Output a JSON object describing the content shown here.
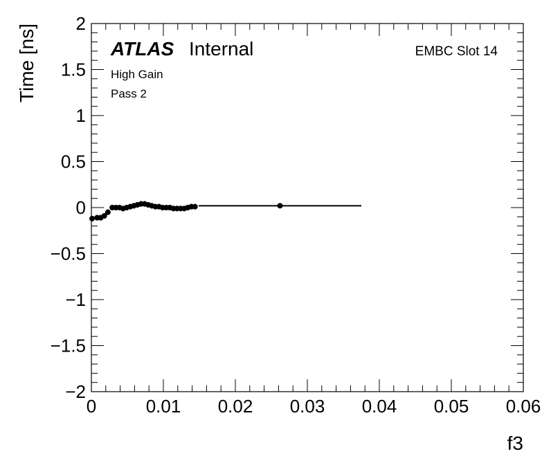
{
  "chart_data": {
    "type": "scatter",
    "xlabel": "f3",
    "ylabel": "Time [ns]",
    "xlim": [
      0,
      0.06
    ],
    "ylim": [
      -2,
      2
    ],
    "x_major_ticks": [
      0,
      0.01,
      0.02,
      0.03,
      0.04,
      0.05,
      0.06
    ],
    "x_tick_labels": [
      "0",
      "0.01",
      "0.02",
      "0.03",
      "0.04",
      "0.05",
      "0.06"
    ],
    "y_major_ticks": [
      -2,
      -1.5,
      -1,
      -0.5,
      0,
      0.5,
      1,
      1.5,
      2
    ],
    "y_tick_labels": [
      "−2",
      "−1.5",
      "−1",
      "−0.5",
      "0",
      "0.5",
      "1",
      "1.5",
      "2"
    ],
    "annotations": {
      "atlas": "ATLAS",
      "atlas_status": "Internal",
      "gain": "High Gain",
      "pass": "Pass 2",
      "slot": "EMBC Slot 14"
    },
    "series": [
      {
        "marker": "circle",
        "color": "#000000",
        "points": [
          {
            "x": 0.0001,
            "y": -0.12,
            "xerr": 0.0002,
            "yerr": 0.03
          },
          {
            "x": 0.0008,
            "y": -0.11,
            "xerr": 0.0003,
            "yerr": 0.03
          },
          {
            "x": 0.0013,
            "y": -0.11,
            "xerr": 0.0003,
            "yerr": 0.03
          },
          {
            "x": 0.0018,
            "y": -0.09,
            "xerr": 0.0003,
            "yerr": 0.03
          },
          {
            "x": 0.0023,
            "y": -0.05,
            "xerr": 0.0003,
            "yerr": 0.03
          },
          {
            "x": 0.0029,
            "y": 0.0,
            "xerr": 0.0003,
            "yerr": 0.03
          },
          {
            "x": 0.0034,
            "y": 0.0,
            "xerr": 0.0003,
            "yerr": 0.03
          },
          {
            "x": 0.0039,
            "y": 0.0,
            "xerr": 0.0003,
            "yerr": 0.03
          },
          {
            "x": 0.0044,
            "y": -0.01,
            "xerr": 0.0003,
            "yerr": 0.03
          },
          {
            "x": 0.0049,
            "y": 0.0,
            "xerr": 0.0003,
            "yerr": 0.03
          },
          {
            "x": 0.0054,
            "y": 0.01,
            "xerr": 0.0003,
            "yerr": 0.03
          },
          {
            "x": 0.0059,
            "y": 0.02,
            "xerr": 0.0003,
            "yerr": 0.03
          },
          {
            "x": 0.0064,
            "y": 0.03,
            "xerr": 0.0003,
            "yerr": 0.03
          },
          {
            "x": 0.0069,
            "y": 0.04,
            "xerr": 0.0003,
            "yerr": 0.03
          },
          {
            "x": 0.0074,
            "y": 0.04,
            "xerr": 0.0003,
            "yerr": 0.03
          },
          {
            "x": 0.0079,
            "y": 0.03,
            "xerr": 0.0003,
            "yerr": 0.03
          },
          {
            "x": 0.0084,
            "y": 0.02,
            "xerr": 0.0003,
            "yerr": 0.03
          },
          {
            "x": 0.0089,
            "y": 0.01,
            "xerr": 0.0003,
            "yerr": 0.03
          },
          {
            "x": 0.0094,
            "y": 0.01,
            "xerr": 0.0003,
            "yerr": 0.03
          },
          {
            "x": 0.0099,
            "y": 0.0,
            "xerr": 0.0003,
            "yerr": 0.03
          },
          {
            "x": 0.0104,
            "y": 0.0,
            "xerr": 0.0003,
            "yerr": 0.03
          },
          {
            "x": 0.0109,
            "y": 0.0,
            "xerr": 0.0003,
            "yerr": 0.03
          },
          {
            "x": 0.0114,
            "y": -0.01,
            "xerr": 0.0003,
            "yerr": 0.03
          },
          {
            "x": 0.0119,
            "y": -0.01,
            "xerr": 0.0003,
            "yerr": 0.03
          },
          {
            "x": 0.0124,
            "y": -0.01,
            "xerr": 0.0003,
            "yerr": 0.03
          },
          {
            "x": 0.0129,
            "y": -0.01,
            "xerr": 0.0003,
            "yerr": 0.03
          },
          {
            "x": 0.0134,
            "y": 0.0,
            "xerr": 0.0003,
            "yerr": 0.03
          },
          {
            "x": 0.0139,
            "y": 0.01,
            "xerr": 0.0003,
            "yerr": 0.03
          },
          {
            "x": 0.0144,
            "y": 0.01,
            "xerr": 0.0003,
            "yerr": 0.03
          },
          {
            "x": 0.0262,
            "y": 0.02,
            "xerr": 0.0113,
            "yerr": 0.02
          }
        ]
      }
    ]
  }
}
